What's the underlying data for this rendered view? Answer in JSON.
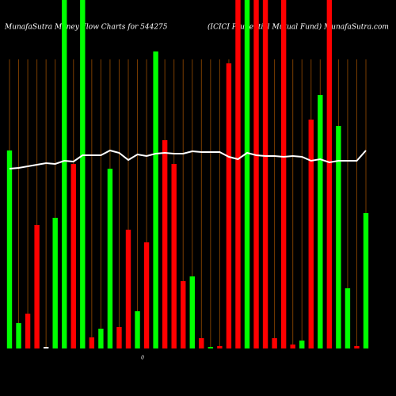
{
  "chart_data": {
    "type": "bar",
    "title": "MunafaSutra  Money Flow  Charts for 544275",
    "subtitle": "(ICICI Prudential Mutual Fund) MunafaSutra.com",
    "ylim": [
      0,
      440
    ],
    "yticks": [
      0
    ],
    "categories": [
      null,
      null,
      null,
      null,
      null,
      null,
      null,
      null,
      null,
      null,
      null,
      null,
      null,
      null,
      null,
      null,
      null,
      null,
      null,
      null,
      null,
      null,
      null,
      null,
      null,
      null,
      null,
      null,
      null,
      null,
      null,
      null,
      null,
      null,
      null,
      null,
      null,
      null,
      null,
      null
    ],
    "values": [
      250,
      32,
      44,
      156,
      2,
      165,
      460,
      233,
      460,
      14,
      25,
      227,
      27,
      150,
      47,
      134,
      375,
      263,
      233,
      85,
      91,
      13,
      2,
      3,
      360,
      460,
      460,
      460,
      460,
      13,
      460,
      5,
      10,
      289,
      320,
      460,
      281,
      76,
      3,
      171
    ],
    "colors": [
      "#00ff00",
      "#00ff00",
      "#ff0000",
      "#ff0000",
      "#ffffff",
      "#00ff00",
      "#00ff00",
      "#ff0000",
      "#00ff00",
      "#ff0000",
      "#00ff00",
      "#00ff00",
      "#ff0000",
      "#ff0000",
      "#00ff00",
      "#ff0000",
      "#00ff00",
      "#ff0000",
      "#ff0000",
      "#ff0000",
      "#00ff00",
      "#ff0000",
      "#00ff00",
      "#ff0000",
      "#ff0000",
      "#ff0000",
      "#00ff00",
      "#ff0000",
      "#ff0000",
      "#ff0000",
      "#ff0000",
      "#ff0000",
      "#00ff00",
      "#ff0000",
      "#00ff00",
      "#ff0000",
      "#00ff00",
      "#00ff00",
      "#ff0000",
      "#00ff00"
    ],
    "line": {
      "color": "#ffffff",
      "values": [
        227,
        228,
        230,
        232,
        234,
        233,
        237,
        236,
        244,
        244,
        244,
        250,
        247,
        238,
        245,
        243,
        246,
        247,
        246,
        246,
        249,
        248,
        248,
        248,
        242,
        239,
        247,
        244,
        243,
        243,
        242,
        243,
        242,
        237,
        239,
        235,
        237,
        237,
        237,
        250
      ]
    }
  }
}
